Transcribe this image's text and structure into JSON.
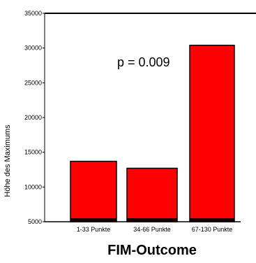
{
  "chart_data": {
    "type": "bar",
    "categories": [
      "1-33 Punkte",
      "34-66 Punkte",
      "67-130 Punkte"
    ],
    "values": [
      13700,
      12700,
      30400
    ],
    "xlabel": "FIM-Outcome",
    "ylabel": "Höhe des Maximums",
    "ylim": [
      5000,
      35000
    ],
    "yticks": [
      "5000",
      "10000",
      "15000",
      "20000",
      "25000",
      "30000",
      "35000"
    ],
    "annotation": "p = 0.009",
    "bar_color": "#ff0000",
    "bar_edge_color": "#000000",
    "grid": false
  }
}
